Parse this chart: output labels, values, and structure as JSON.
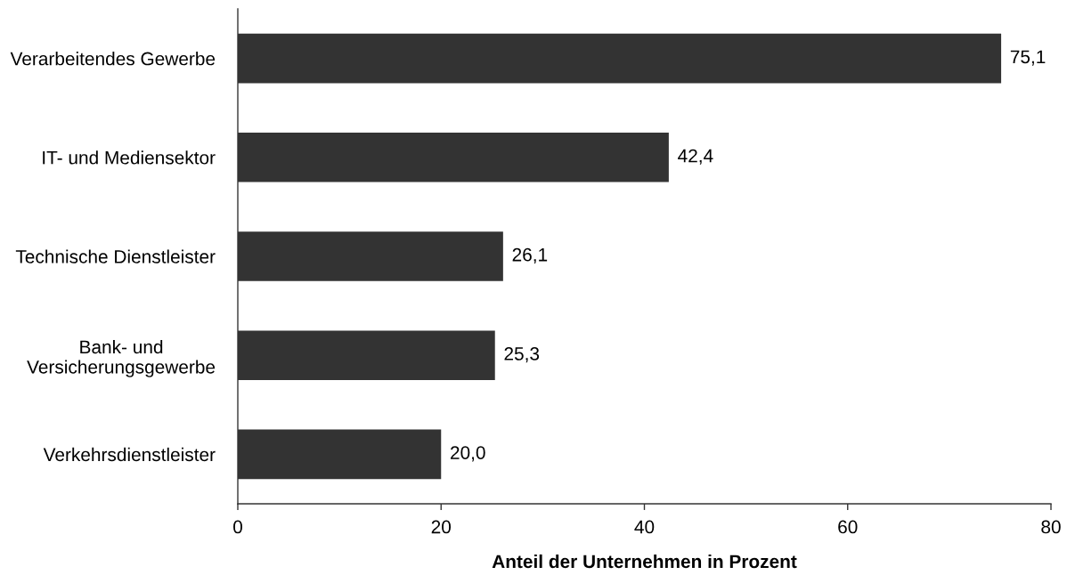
{
  "chart_data": {
    "type": "bar",
    "orientation": "horizontal",
    "categories": [
      "Verarbeitendes Gewerbe",
      "IT- und Mediensektor",
      "Technische Dienstleister",
      "Bank- und\nVersicherungsgewerbe",
      "Verkehrsdienstleister"
    ],
    "values": [
      75.1,
      42.4,
      26.1,
      25.3,
      20.0
    ],
    "value_labels": [
      "75,1",
      "42,4",
      "26,1",
      "25,3",
      "20,0"
    ],
    "color": "#333333",
    "xlabel": "Anteil der Unternehmen in Prozent",
    "xlim": [
      0,
      80
    ],
    "xticks": [
      0,
      20,
      40,
      60,
      80
    ],
    "grid": false
  }
}
